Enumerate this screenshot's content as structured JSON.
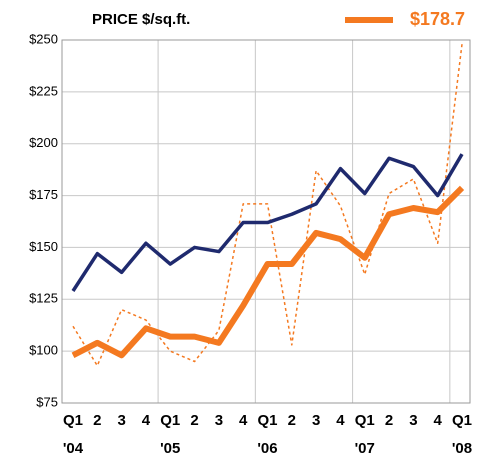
{
  "chart_data": {
    "type": "line",
    "title": "PRICE $/sq.ft.",
    "categories": [
      "Q1",
      "2",
      "3",
      "4",
      "Q1",
      "2",
      "3",
      "4",
      "Q1",
      "2",
      "3",
      "4",
      "Q1",
      "2",
      "3",
      "4",
      "Q1"
    ],
    "years": [
      "'04",
      "'05",
      "'06",
      "'07",
      "'08"
    ],
    "series": [
      {
        "color": "#1f2a6e",
        "style": "solid",
        "values": [
          129,
          147,
          138,
          152,
          142,
          150,
          148,
          162,
          162,
          166,
          171,
          188,
          176,
          193,
          189,
          175,
          195
        ]
      },
      {
        "name": "$178.7",
        "color": "#f47920",
        "style": "thick",
        "values": [
          98,
          104,
          98,
          111,
          107,
          107,
          104,
          122,
          142,
          142,
          157,
          154,
          145,
          166,
          169,
          167,
          178.7
        ]
      },
      {
        "color": "#f47920",
        "style": "dotted",
        "values": [
          112,
          93,
          120,
          115,
          100,
          95,
          110,
          171,
          171,
          103,
          187,
          170,
          137,
          176,
          183,
          152,
          248
        ]
      }
    ],
    "ylim": [
      75,
      250
    ],
    "yticks": [
      {
        "value": 75,
        "label": "$75"
      },
      {
        "value": 100,
        "label": "$100"
      },
      {
        "value": 125,
        "label": "$125"
      },
      {
        "value": 150,
        "label": "$150"
      },
      {
        "value": 175,
        "label": "$175"
      },
      {
        "value": 200,
        "label": "$200"
      },
      {
        "value": 225,
        "label": "$225"
      },
      {
        "value": 250,
        "label": "$250"
      }
    ],
    "grid": true
  }
}
